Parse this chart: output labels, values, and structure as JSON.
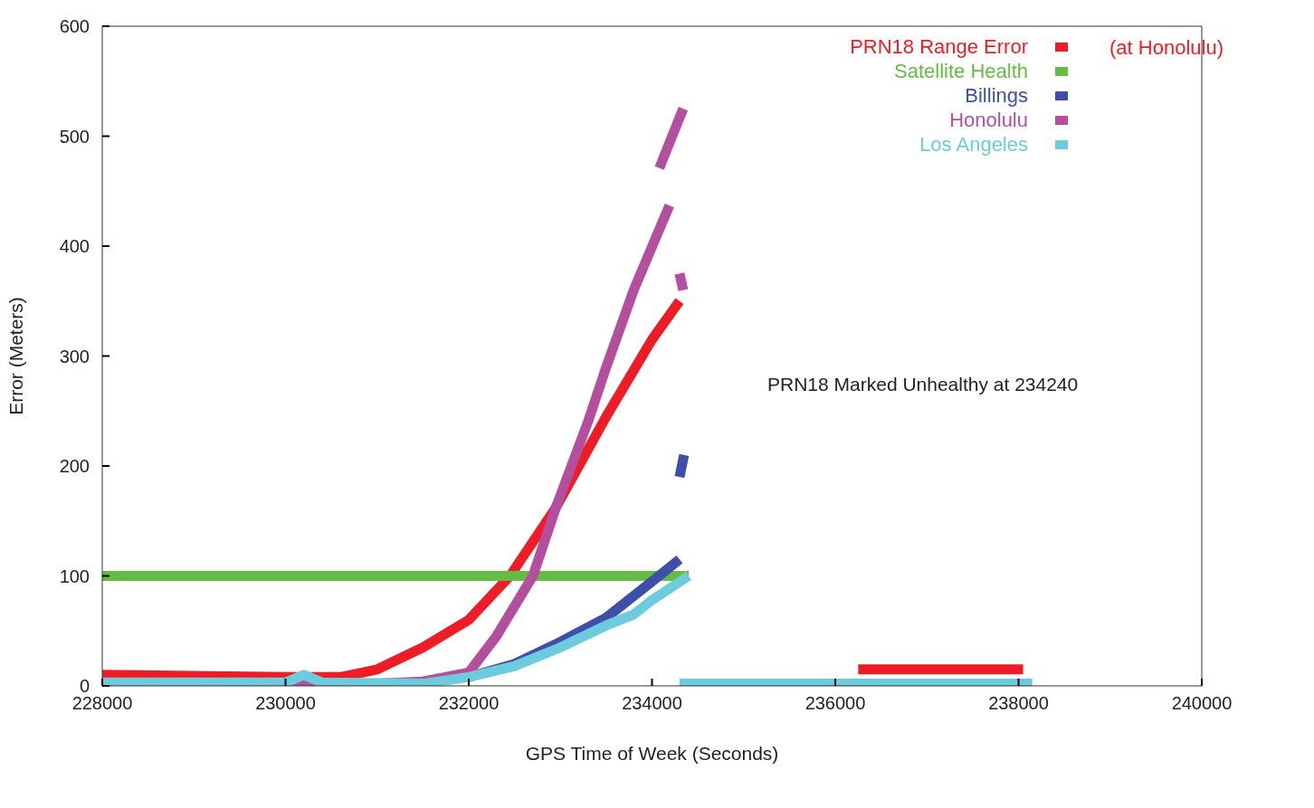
{
  "chart_data": {
    "type": "line",
    "xlabel": "GPS Time of Week (Seconds)",
    "ylabel": "Error (Meters)",
    "xlim": [
      228000,
      240000
    ],
    "xticks": [
      228000,
      230000,
      232000,
      234000,
      236000,
      238000,
      240000
    ],
    "ylim": [
      0,
      600
    ],
    "yticks": [
      0,
      100,
      200,
      300,
      400,
      500,
      600
    ],
    "grid": false,
    "legend": "top right",
    "line_style": "solid",
    "annotations": [
      "(at Honolulu)",
      "PRN18 Marked Unhealthy at 234240"
    ],
    "series": [
      {
        "name": "PRN18 Range Error",
        "color": "#ee1c25",
        "x": [
          228000,
          229000,
          230000,
          230600,
          231000,
          231500,
          232000,
          232450,
          232950,
          233500,
          234000,
          234300,
          null,
          236250,
          237000,
          238050
        ],
        "values": [
          10,
          9,
          8,
          8,
          15,
          35,
          60,
          100,
          162,
          245,
          315,
          350,
          null,
          15,
          15,
          15
        ]
      },
      {
        "name": "Satellite Health",
        "color": "#66bb44",
        "x": [
          228000,
          234400
        ],
        "values": [
          100,
          100
        ]
      },
      {
        "name": "Billings",
        "color": "#3d4fa8",
        "x": [
          232000,
          232500,
          233000,
          233500,
          234000,
          234300,
          null,
          234300,
          234350
        ],
        "values": [
          8,
          20,
          40,
          62,
          95,
          115,
          null,
          190,
          210
        ]
      },
      {
        "name": "Honolulu",
        "color": "#b44fa0",
        "x": [
          228000,
          230000,
          231000,
          231500,
          232000,
          232300,
          232700,
          232950,
          233300,
          233500,
          233800,
          234190,
          null,
          234080,
          234340,
          null,
          234300,
          234340
        ],
        "values": [
          2,
          2,
          2,
          4,
          12,
          45,
          100,
          162,
          240,
          290,
          360,
          437,
          null,
          471,
          525,
          null,
          375,
          360
        ]
      },
      {
        "name": "Los Angeles",
        "color": "#6ccbdc",
        "x": [
          228000,
          230000,
          230200,
          230400,
          231500,
          232000,
          232500,
          233000,
          233500,
          233800,
          234000,
          234400,
          null,
          234300,
          238150
        ],
        "values": [
          3,
          3,
          10,
          3,
          2,
          8,
          18,
          35,
          55,
          65,
          78,
          100,
          null,
          2,
          2
        ]
      }
    ]
  }
}
